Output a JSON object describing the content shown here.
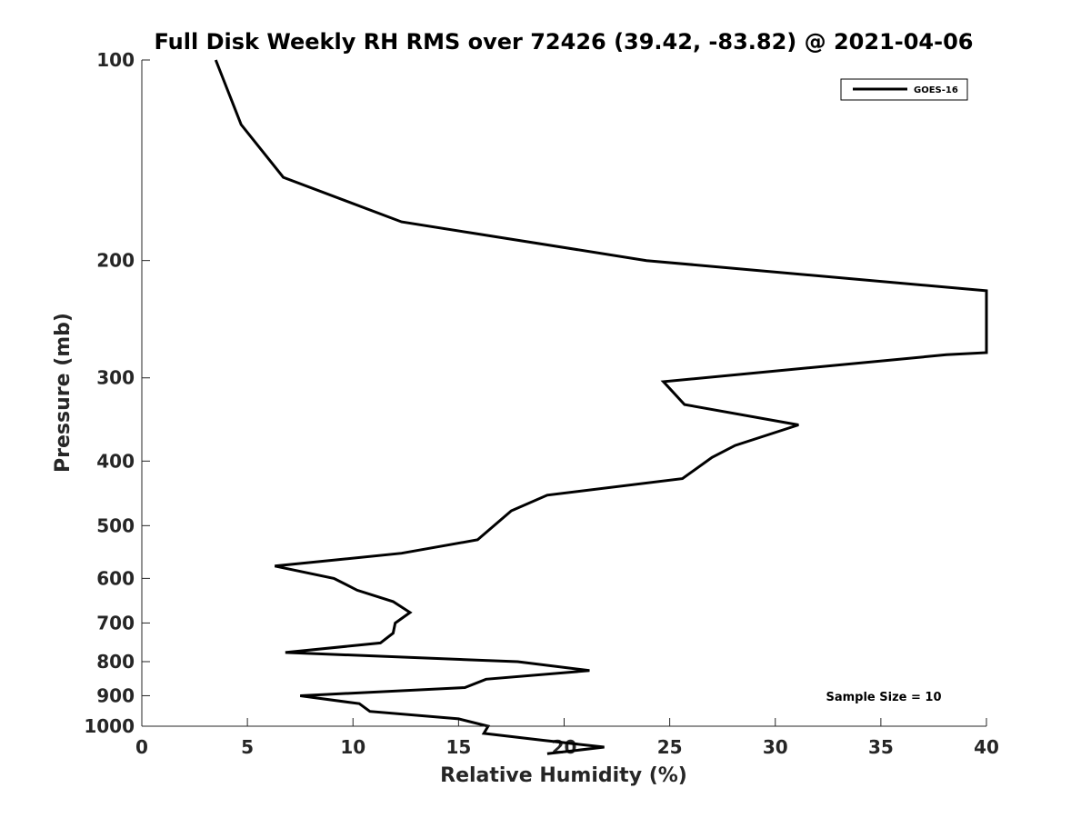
{
  "chart_data": {
    "type": "line",
    "title": "Full Disk Weekly RH RMS over 72426 (39.42, -83.82) @ 2021-04-06",
    "xlabel": "Relative Humidity (%)",
    "ylabel": "Pressure (mb)",
    "xlim": [
      0,
      40
    ],
    "ylim": [
      100,
      1000
    ],
    "yscale": "log",
    "y_reversed": true,
    "grid": false,
    "legend_position": "top-right",
    "x_ticks": [
      "0",
      "5",
      "10",
      "15",
      "20",
      "25",
      "30",
      "35",
      "40"
    ],
    "y_ticks": [
      "100",
      "200",
      "300",
      "400",
      "500",
      "600",
      "700",
      "800",
      "900",
      "1000"
    ],
    "series": [
      {
        "name": "GOES-16",
        "color": "#000000",
        "points": [
          {
            "x": 3.5,
            "p": 100
          },
          {
            "x": 4.7,
            "p": 125
          },
          {
            "x": 6.7,
            "p": 150
          },
          {
            "x": 12.3,
            "p": 175
          },
          {
            "x": 23.9,
            "p": 200
          },
          {
            "x": 40.0,
            "p": 222
          },
          {
            "x": 40.0,
            "p": 275
          },
          {
            "x": 38.1,
            "p": 277
          },
          {
            "x": 24.7,
            "p": 304
          },
          {
            "x": 25.7,
            "p": 329
          },
          {
            "x": 31.1,
            "p": 353
          },
          {
            "x": 28.1,
            "p": 379
          },
          {
            "x": 27.0,
            "p": 395
          },
          {
            "x": 25.6,
            "p": 425
          },
          {
            "x": 19.2,
            "p": 450
          },
          {
            "x": 17.5,
            "p": 475
          },
          {
            "x": 15.9,
            "p": 525
          },
          {
            "x": 12.3,
            "p": 550
          },
          {
            "x": 6.3,
            "p": 575
          },
          {
            "x": 9.1,
            "p": 600
          },
          {
            "x": 10.2,
            "p": 625
          },
          {
            "x": 11.9,
            "p": 650
          },
          {
            "x": 12.7,
            "p": 675
          },
          {
            "x": 12.0,
            "p": 700
          },
          {
            "x": 11.9,
            "p": 725
          },
          {
            "x": 11.3,
            "p": 750
          },
          {
            "x": 6.8,
            "p": 775
          },
          {
            "x": 17.8,
            "p": 800
          },
          {
            "x": 21.2,
            "p": 825
          },
          {
            "x": 16.3,
            "p": 850
          },
          {
            "x": 15.3,
            "p": 875
          },
          {
            "x": 7.5,
            "p": 900
          },
          {
            "x": 10.3,
            "p": 925
          },
          {
            "x": 10.8,
            "p": 950
          },
          {
            "x": 15.0,
            "p": 975
          },
          {
            "x": 16.4,
            "p": 1000
          },
          {
            "x": 16.2,
            "p": 1025
          },
          {
            "x": 19.0,
            "p": 1050
          },
          {
            "x": 21.9,
            "p": 1075
          },
          {
            "x": 19.2,
            "p": 1100
          }
        ]
      }
    ],
    "annotation": "Sample Size = 10"
  }
}
